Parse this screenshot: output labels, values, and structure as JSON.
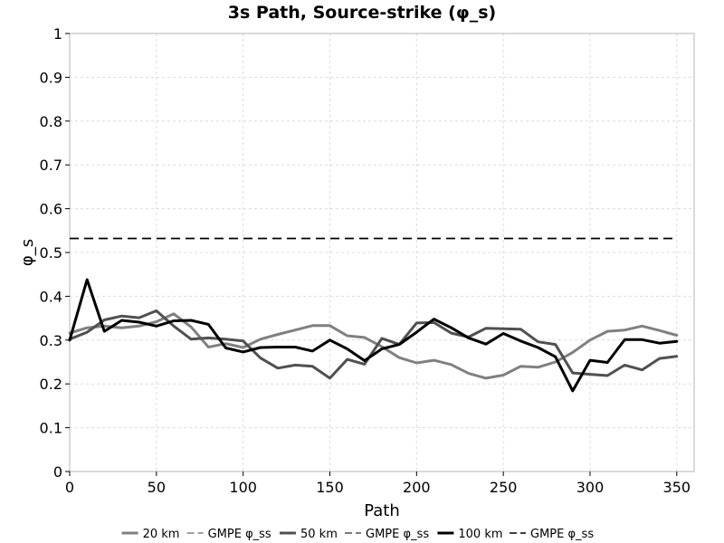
{
  "chart_data": {
    "type": "line",
    "title": "3s Path, Source-strike (φ_s)",
    "xlabel": "Path",
    "ylabel": "φ_s",
    "xlim": [
      0,
      360
    ],
    "ylim": [
      0,
      1
    ],
    "xticks": [
      0,
      50,
      100,
      150,
      200,
      250,
      300,
      350
    ],
    "yticks": [
      0,
      0.1,
      0.2,
      0.3,
      0.4,
      0.5,
      0.6,
      0.7,
      0.8,
      0.9,
      1
    ],
    "ytick_labels": [
      "0",
      "0.1",
      "0.2",
      "0.3",
      "0.4",
      "0.5",
      "0.6",
      "0.7",
      "0.8",
      "0.9",
      "1"
    ],
    "grid": true,
    "legend_position": "bottom",
    "x": [
      0,
      10,
      20,
      30,
      40,
      50,
      60,
      70,
      80,
      90,
      100,
      110,
      120,
      130,
      140,
      150,
      160,
      170,
      180,
      190,
      200,
      210,
      220,
      230,
      240,
      250,
      260,
      270,
      280,
      290,
      300,
      310,
      320,
      330,
      340,
      350
    ],
    "series": [
      {
        "name": "20 km",
        "color": "#808080",
        "width": 3,
        "dash": "",
        "values": [
          0.316,
          0.328,
          0.332,
          0.328,
          0.332,
          0.342,
          0.36,
          0.33,
          0.284,
          0.292,
          0.283,
          0.302,
          0.313,
          0.323,
          0.333,
          0.333,
          0.31,
          0.306,
          0.285,
          0.26,
          0.248,
          0.254,
          0.244,
          0.224,
          0.213,
          0.22,
          0.24,
          0.238,
          0.25,
          0.272,
          0.3,
          0.32,
          0.323,
          0.332,
          0.322,
          0.311
        ]
      },
      {
        "name": "GMPE φ_ss",
        "color": "#808080",
        "width": 1.5,
        "dash": "10,6",
        "values": [
          0.532,
          0.532,
          0.532,
          0.532,
          0.532,
          0.532,
          0.532,
          0.532,
          0.532,
          0.532,
          0.532,
          0.532,
          0.532,
          0.532,
          0.532,
          0.532,
          0.532,
          0.532,
          0.532,
          0.532,
          0.532,
          0.532,
          0.532,
          0.532,
          0.532,
          0.532,
          0.532,
          0.532,
          0.532,
          0.532,
          0.532,
          0.532,
          0.532,
          0.532,
          0.532,
          0.532
        ]
      },
      {
        "name": "50 km",
        "color": "#505050",
        "width": 3,
        "dash": "",
        "values": [
          0.302,
          0.318,
          0.346,
          0.355,
          0.351,
          0.367,
          0.332,
          0.302,
          0.305,
          0.302,
          0.298,
          0.259,
          0.236,
          0.243,
          0.24,
          0.213,
          0.256,
          0.245,
          0.304,
          0.29,
          0.339,
          0.34,
          0.316,
          0.307,
          0.327,
          0.326,
          0.325,
          0.296,
          0.29,
          0.225,
          0.222,
          0.219,
          0.243,
          0.232,
          0.258,
          0.263
        ]
      },
      {
        "name": "GMPE φ_ss",
        "color": "#505050",
        "width": 1.5,
        "dash": "10,6",
        "values": [
          0.532,
          0.532,
          0.532,
          0.532,
          0.532,
          0.532,
          0.532,
          0.532,
          0.532,
          0.532,
          0.532,
          0.532,
          0.532,
          0.532,
          0.532,
          0.532,
          0.532,
          0.532,
          0.532,
          0.532,
          0.532,
          0.532,
          0.532,
          0.532,
          0.532,
          0.532,
          0.532,
          0.532,
          0.532,
          0.532,
          0.532,
          0.532,
          0.532,
          0.532,
          0.532,
          0.532
        ]
      },
      {
        "name": "100 km",
        "color": "#000000",
        "width": 3,
        "dash": "",
        "values": [
          0.3,
          0.438,
          0.32,
          0.345,
          0.341,
          0.332,
          0.344,
          0.345,
          0.336,
          0.282,
          0.273,
          0.283,
          0.284,
          0.284,
          0.275,
          0.3,
          0.28,
          0.253,
          0.28,
          0.29,
          0.318,
          0.348,
          0.328,
          0.305,
          0.291,
          0.315,
          0.298,
          0.283,
          0.262,
          0.184,
          0.254,
          0.249,
          0.301,
          0.301,
          0.293,
          0.297
        ]
      },
      {
        "name": "GMPE φ_ss",
        "color": "#000000",
        "width": 1.5,
        "dash": "10,6",
        "values": [
          0.532,
          0.532,
          0.532,
          0.532,
          0.532,
          0.532,
          0.532,
          0.532,
          0.532,
          0.532,
          0.532,
          0.532,
          0.532,
          0.532,
          0.532,
          0.532,
          0.532,
          0.532,
          0.532,
          0.532,
          0.532,
          0.532,
          0.532,
          0.532,
          0.532,
          0.532,
          0.532,
          0.532,
          0.532,
          0.532,
          0.532,
          0.532,
          0.532,
          0.532,
          0.532,
          0.532
        ]
      }
    ]
  }
}
